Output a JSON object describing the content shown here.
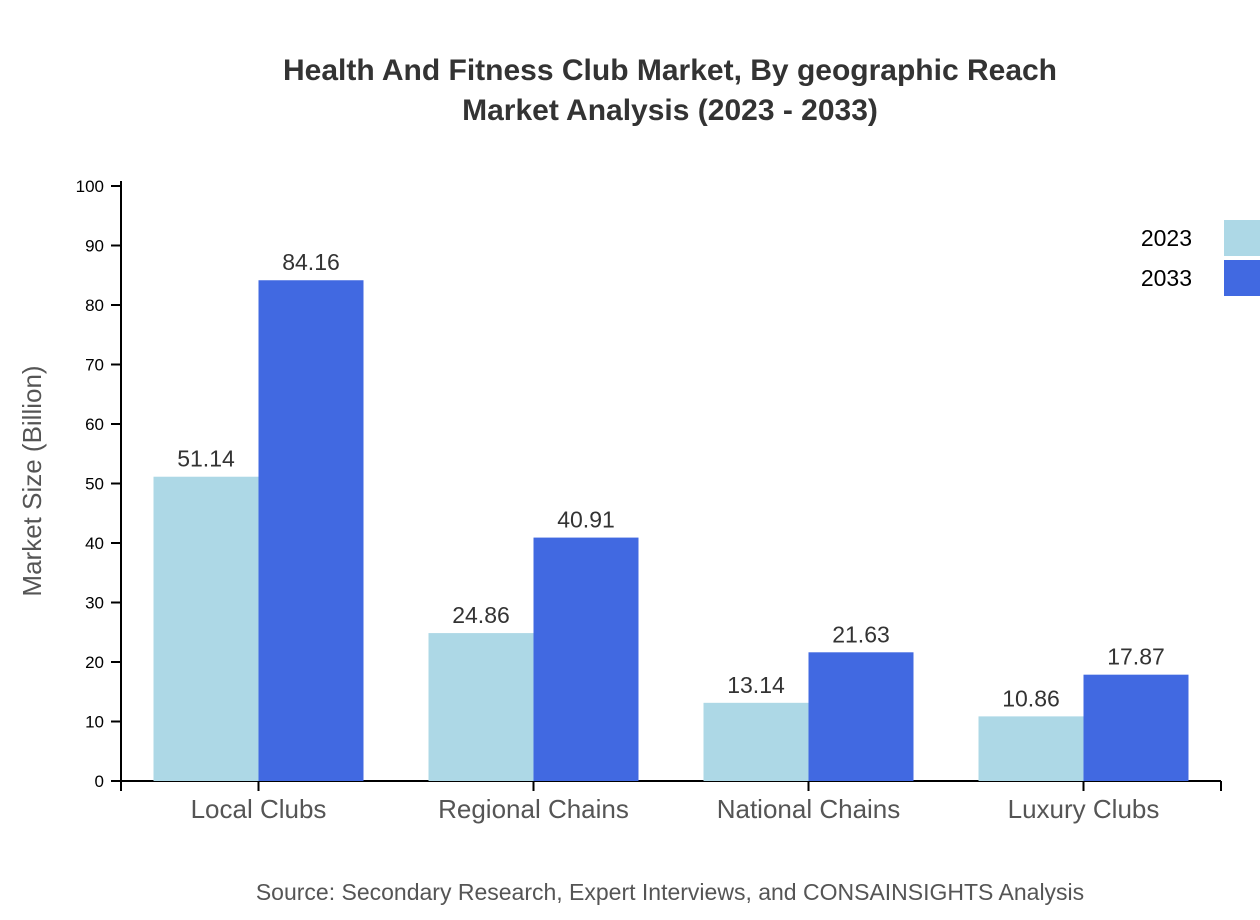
{
  "chart_data": {
    "type": "bar",
    "title": [
      "Health And Fitness Club Market, By geographic Reach",
      "Market Analysis (2023 - 2033)"
    ],
    "ylabel": "Market Size (Billion)",
    "xlabel": "",
    "ylim": [
      0,
      100
    ],
    "yticks": [
      0,
      10,
      20,
      30,
      40,
      50,
      60,
      70,
      80,
      90,
      100
    ],
    "categories": [
      "Local Clubs",
      "Regional Chains",
      "National Chains",
      "Luxury Clubs"
    ],
    "series": [
      {
        "name": "2023",
        "color": "#add8e6",
        "values": [
          51.14,
          24.86,
          13.14,
          10.86
        ]
      },
      {
        "name": "2033",
        "color": "#4169e1",
        "values": [
          84.16,
          40.91,
          21.63,
          17.87
        ]
      }
    ],
    "legend_position": "top-right",
    "grid": false,
    "source": "Source: Secondary Research, Expert Interviews, and CONSAINSIGHTS Analysis"
  }
}
